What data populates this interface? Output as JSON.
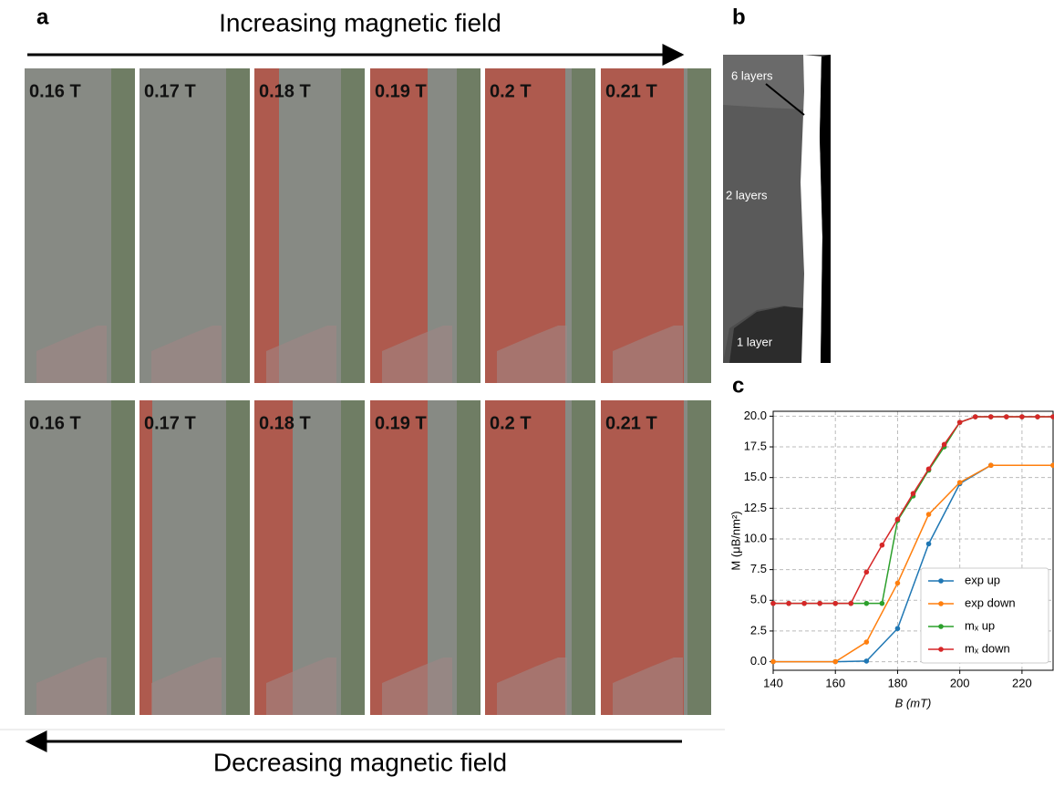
{
  "panel_a": {
    "label": "a",
    "top_arrow": "Increasing magnetic field",
    "bottom_arrow": "Decreasing magnetic field",
    "rows": [
      {
        "fields": [
          "0.16 T",
          "0.17 T",
          "0.18 T",
          "0.19 T",
          "0.2 T",
          "0.21 T"
        ]
      },
      {
        "fields": [
          "0.16 T",
          "0.17 T",
          "0.18 T",
          "0.19 T",
          "0.2 T",
          "0.21 T"
        ]
      }
    ]
  },
  "panel_b": {
    "label": "b",
    "annotations": [
      "6 layers",
      "2 layers",
      "1 layer"
    ]
  },
  "chart_data": {
    "type": "line",
    "label": "c",
    "x_label": "B (mT)",
    "y_label": "M (μB/nm²)",
    "xlim": [
      140,
      230
    ],
    "xticks": [
      140,
      160,
      180,
      200,
      220
    ],
    "ylim": [
      -0.7,
      20.4
    ],
    "yticks": [
      {
        "value": 0,
        "label": "0.0"
      },
      2.5,
      {
        "value": 5,
        "label": "5.0"
      },
      7.5,
      {
        "value": 10,
        "label": "10.0"
      },
      12.5,
      {
        "value": 15,
        "label": "15.0"
      },
      17.5,
      {
        "value": 20,
        "label": "20.0"
      }
    ],
    "grid": true,
    "legend": "lower right",
    "series": [
      {
        "name": "exp up",
        "color": "#1f77b4",
        "x": [
          140,
          160,
          170,
          180,
          190,
          200,
          210,
          230
        ],
        "values": [
          0,
          0,
          0.05,
          2.7,
          9.6,
          14.5,
          16.0,
          16.0
        ]
      },
      {
        "name": "exp down",
        "color": "#ff7f0e",
        "x": [
          140,
          160,
          170,
          180,
          190,
          200,
          210,
          230
        ],
        "values": [
          0,
          0,
          1.6,
          6.4,
          12.0,
          14.6,
          16.0,
          16.0
        ]
      },
      {
        "name": "mₓ up",
        "color": "#2ca02c",
        "x": [
          140,
          145,
          150,
          155,
          160,
          165,
          170,
          175,
          180,
          185,
          190,
          195,
          200,
          205,
          210,
          215,
          220,
          225,
          230
        ],
        "values": [
          4.75,
          4.75,
          4.75,
          4.75,
          4.75,
          4.75,
          4.75,
          4.75,
          11.5,
          13.5,
          15.6,
          17.5,
          19.5,
          19.95,
          19.95,
          19.95,
          19.95,
          19.95,
          19.95
        ]
      },
      {
        "name": "mₓ down",
        "color": "#d62728",
        "x": [
          140,
          145,
          150,
          155,
          160,
          165,
          170,
          175,
          180,
          185,
          190,
          195,
          200,
          205,
          210,
          215,
          220,
          225,
          230
        ],
        "values": [
          4.75,
          4.75,
          4.75,
          4.75,
          4.75,
          4.75,
          7.3,
          9.5,
          11.6,
          13.7,
          15.7,
          17.7,
          19.5,
          19.95,
          19.95,
          19.95,
          19.95,
          19.95,
          19.95
        ]
      }
    ]
  }
}
